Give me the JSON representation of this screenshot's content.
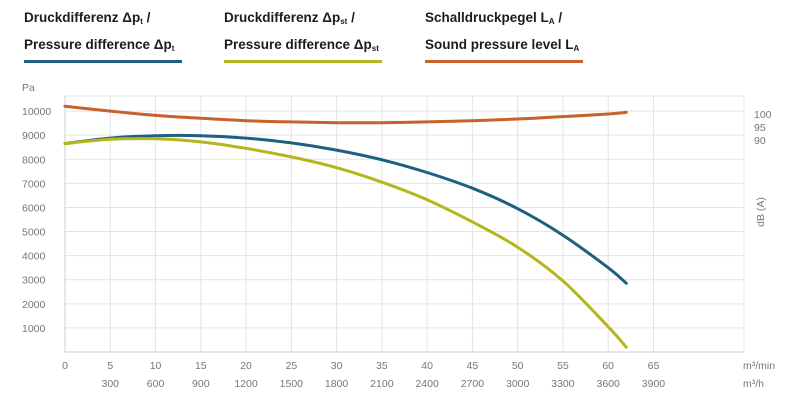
{
  "legend": [
    {
      "line1": "Druckdifferenz Δp",
      "sub1": "t",
      "tail1": " /",
      "line2": "Pressure difference Δp",
      "sub2": "t",
      "tail2": "",
      "color": "#1f5f7f"
    },
    {
      "line1": "Druckdifferenz Δp",
      "sub1": "st",
      "tail1": " /",
      "line2": "Pressure difference Δp",
      "sub2": "st",
      "tail2": "",
      "color": "#b5b61e"
    },
    {
      "line1": "Schalldruckpegel L",
      "sub1": "A",
      "tail1": " /",
      "line2": "Sound pressure level L",
      "sub2": "A",
      "tail2": "",
      "color": "#c8612a"
    }
  ],
  "chart_data": {
    "type": "line",
    "x_unit": "m³/min",
    "x_unit_secondary": "m³/h",
    "y_unit": "Pa",
    "y2_label": "dB (A)",
    "xlim": [
      0,
      75
    ],
    "ylim": [
      0,
      11000
    ],
    "y2_ticks": [
      90,
      95,
      100
    ],
    "x_ticks": [
      0,
      5,
      10,
      15,
      20,
      25,
      30,
      35,
      40,
      45,
      50,
      55,
      60,
      65
    ],
    "x_ticks_secondary": [
      {
        "x": 5,
        "label": "300"
      },
      {
        "x": 10,
        "label": "600"
      },
      {
        "x": 15,
        "label": "900"
      },
      {
        "x": 20,
        "label": "1200"
      },
      {
        "x": 25,
        "label": "1500"
      },
      {
        "x": 30,
        "label": "1800"
      },
      {
        "x": 35,
        "label": "2100"
      },
      {
        "x": 40,
        "label": "2400"
      },
      {
        "x": 45,
        "label": "2700"
      },
      {
        "x": 50,
        "label": "3000"
      },
      {
        "x": 55,
        "label": "3300"
      },
      {
        "x": 60,
        "label": "3600"
      },
      {
        "x": 65,
        "label": "3900"
      }
    ],
    "y_ticks": [
      1000,
      2000,
      3000,
      4000,
      5000,
      6000,
      7000,
      8000,
      9000,
      10000
    ],
    "grid": true,
    "series": [
      {
        "name": "Δpt",
        "color": "#1f5f7f",
        "points": [
          [
            0,
            8650
          ],
          [
            5,
            8880
          ],
          [
            10,
            8980
          ],
          [
            15,
            8980
          ],
          [
            20,
            8880
          ],
          [
            25,
            8680
          ],
          [
            30,
            8380
          ],
          [
            35,
            7980
          ],
          [
            40,
            7450
          ],
          [
            45,
            6800
          ],
          [
            50,
            5950
          ],
          [
            55,
            4850
          ],
          [
            60,
            3500
          ],
          [
            62,
            2850
          ]
        ]
      },
      {
        "name": "Δpst",
        "color": "#b5b61e",
        "points": [
          [
            0,
            8650
          ],
          [
            5,
            8830
          ],
          [
            10,
            8850
          ],
          [
            15,
            8720
          ],
          [
            20,
            8450
          ],
          [
            25,
            8100
          ],
          [
            30,
            7650
          ],
          [
            35,
            7050
          ],
          [
            40,
            6320
          ],
          [
            45,
            5400
          ],
          [
            50,
            4350
          ],
          [
            55,
            2950
          ],
          [
            60,
            1050
          ],
          [
            62,
            200
          ]
        ]
      },
      {
        "name": "LA",
        "color": "#c8612a",
        "points": [
          [
            0,
            10200
          ],
          [
            5,
            10000
          ],
          [
            10,
            9820
          ],
          [
            15,
            9700
          ],
          [
            20,
            9600
          ],
          [
            25,
            9550
          ],
          [
            30,
            9520
          ],
          [
            35,
            9520
          ],
          [
            40,
            9550
          ],
          [
            45,
            9600
          ],
          [
            50,
            9670
          ],
          [
            55,
            9770
          ],
          [
            60,
            9880
          ],
          [
            62,
            9950
          ]
        ]
      }
    ]
  }
}
